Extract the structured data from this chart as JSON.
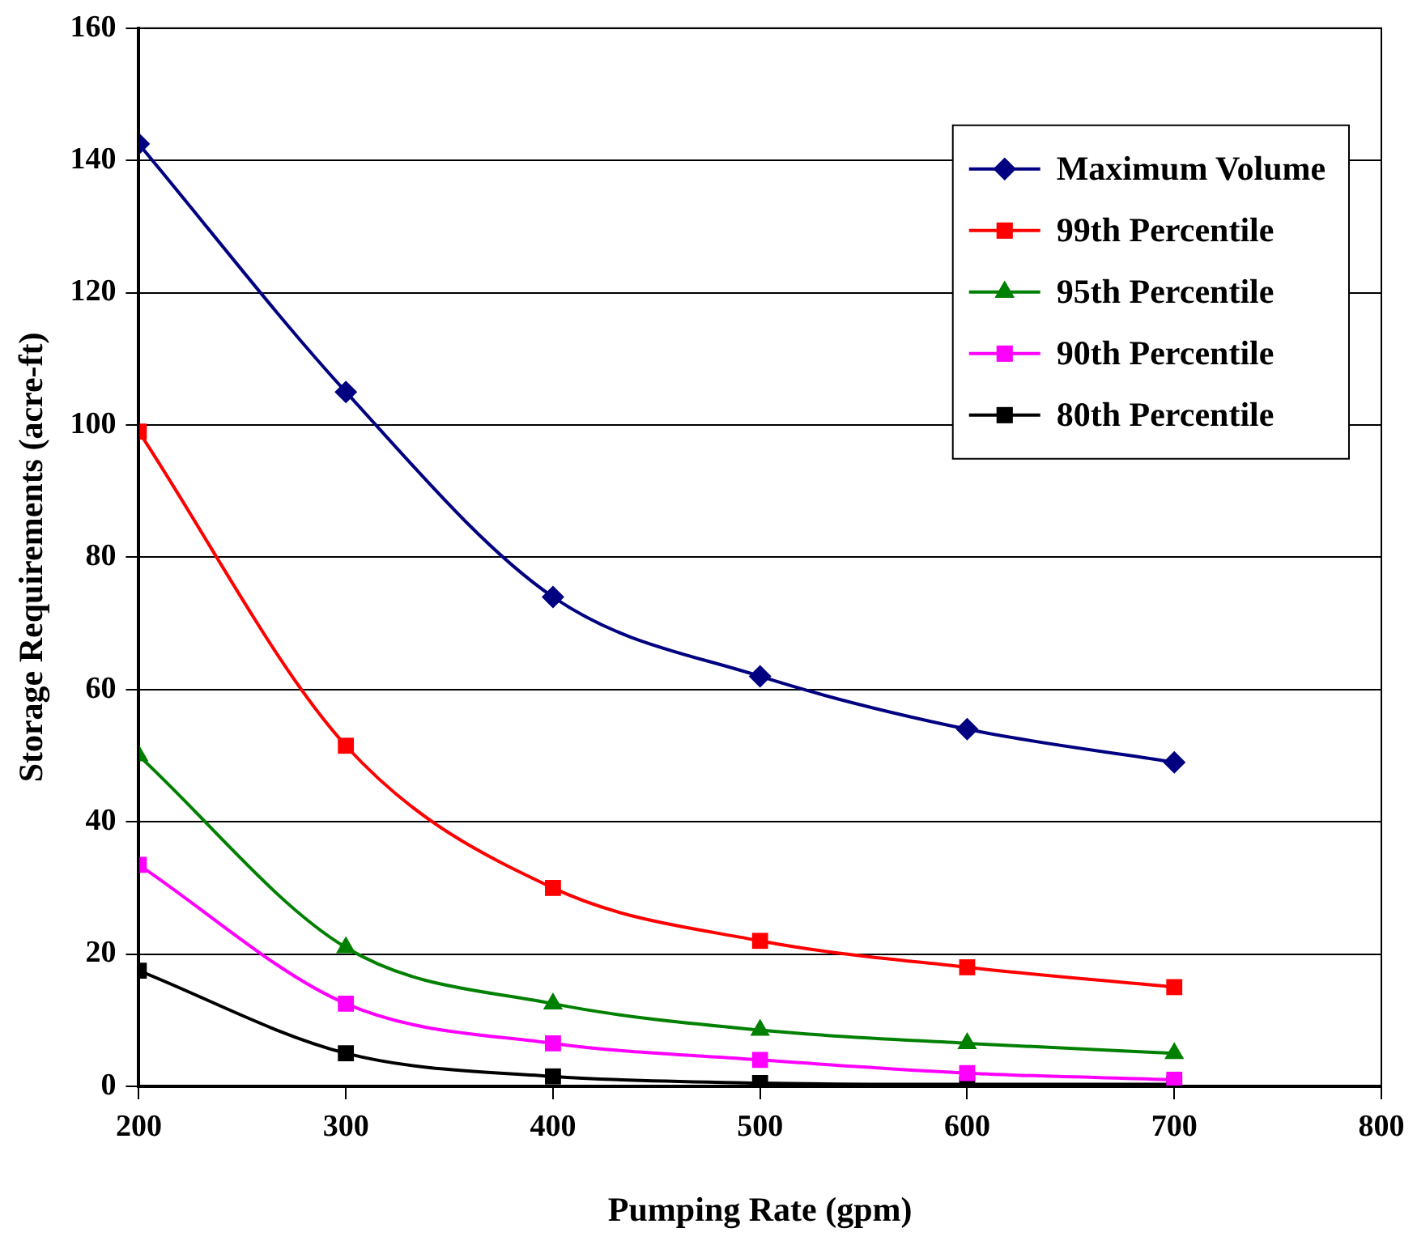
{
  "chart_data": {
    "type": "line",
    "xlabel": "Pumping Rate (gpm)",
    "ylabel": "Storage Requirements (acre-ft)",
    "x": [
      200,
      300,
      400,
      500,
      600,
      700
    ],
    "series": [
      {
        "name": "Maximum Volume",
        "color": "#000080",
        "marker": "diamond",
        "values": [
          142.5,
          105,
          74,
          62,
          54,
          49
        ]
      },
      {
        "name": "99th Percentile",
        "color": "#ff0000",
        "marker": "square",
        "values": [
          99,
          51.5,
          30,
          22,
          18,
          15
        ]
      },
      {
        "name": "95th Percentile",
        "color": "#008000",
        "marker": "triangle",
        "values": [
          50,
          21,
          12.5,
          8.5,
          6.5,
          5
        ]
      },
      {
        "name": "90th Percentile",
        "color": "#ff00ff",
        "marker": "square",
        "values": [
          33.5,
          12.5,
          6.5,
          4,
          2,
          1
        ]
      },
      {
        "name": "80th Percentile",
        "color": "#000000",
        "marker": "square",
        "values": [
          17.5,
          5,
          1.5,
          0.5,
          0.3,
          0.3
        ]
      }
    ],
    "xlim": [
      200,
      800
    ],
    "xticks": [
      200,
      300,
      400,
      500,
      600,
      700,
      800
    ],
    "ylim": [
      0,
      160
    ],
    "yticks": [
      0,
      20,
      40,
      60,
      80,
      100,
      120,
      140,
      160
    ],
    "grid": "y",
    "legend": "top right"
  }
}
